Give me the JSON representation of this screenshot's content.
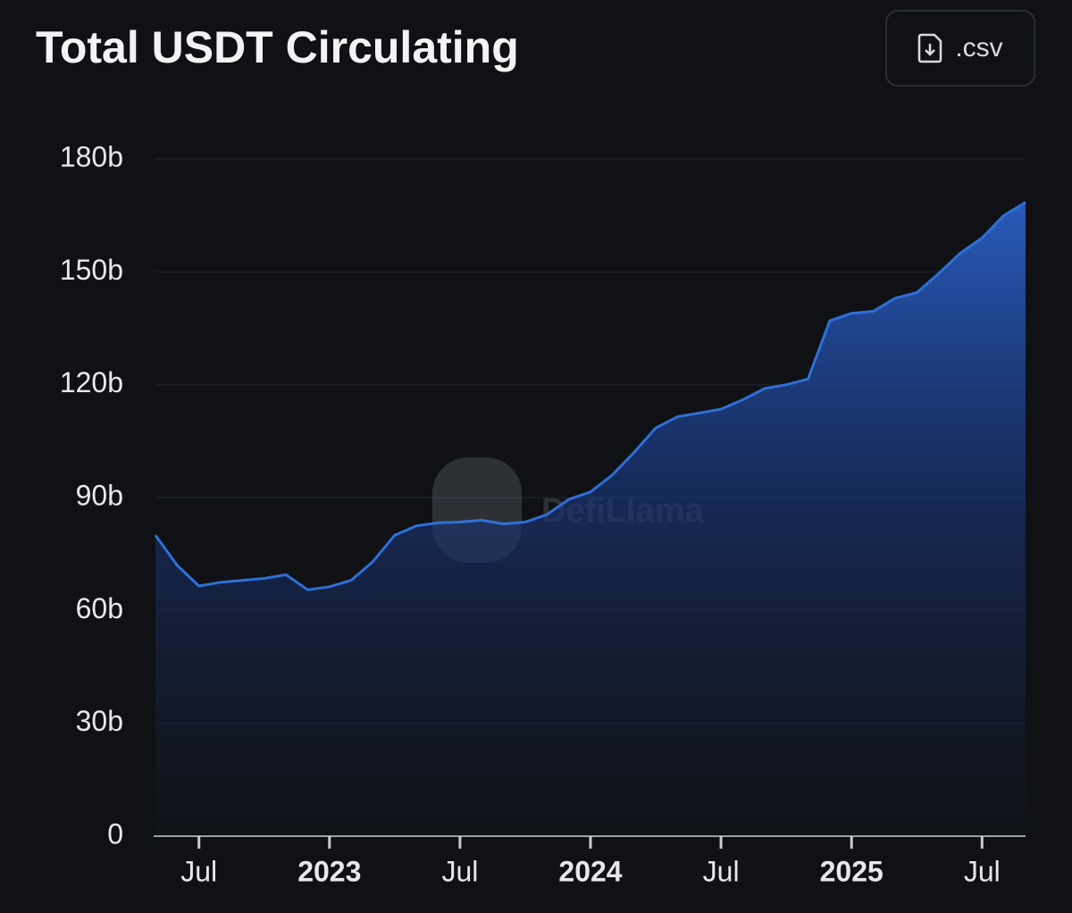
{
  "chart_data": {
    "type": "area",
    "title": "Total USDT Circulating",
    "button": ".csv",
    "watermark": "DefiLlama",
    "x": [
      "2022-05",
      "2022-06",
      "2022-07",
      "2022-08",
      "2022-09",
      "2022-10",
      "2022-11",
      "2022-12",
      "2023-01",
      "2023-02",
      "2023-03",
      "2023-04",
      "2023-05",
      "2023-06",
      "2023-07",
      "2023-08",
      "2023-09",
      "2023-10",
      "2023-11",
      "2023-12",
      "2024-01",
      "2024-02",
      "2024-03",
      "2024-04",
      "2024-05",
      "2024-06",
      "2024-07",
      "2024-08",
      "2024-09",
      "2024-10",
      "2024-11",
      "2024-12",
      "2025-01",
      "2025-02",
      "2025-03",
      "2025-04",
      "2025-05",
      "2025-06",
      "2025-07",
      "2025-08",
      "2025-09"
    ],
    "series": [
      {
        "name": "USDT",
        "color": "#2f6fd8",
        "values": [
          80,
          72,
          66.5,
          67.5,
          68,
          68.5,
          69.5,
          65.5,
          66.3,
          68,
          73,
          80,
          82.5,
          83.3,
          83.5,
          84,
          83,
          83.5,
          85.5,
          89.5,
          91.5,
          96,
          102,
          108.5,
          111.5,
          112.5,
          113.5,
          116,
          119,
          120,
          121.5,
          137,
          139,
          139.5,
          143,
          144.5,
          149.5,
          155,
          159,
          165,
          168.5
        ]
      }
    ],
    "xlim": [
      "2022-05",
      "2025-09"
    ],
    "xticks": [
      {
        "value": "2022-07",
        "label": "Jul"
      },
      {
        "value": "2023-01",
        "label": "2023"
      },
      {
        "value": "2023-07",
        "label": "Jul"
      },
      {
        "value": "2024-01",
        "label": "2024"
      },
      {
        "value": "2024-07",
        "label": "Jul"
      },
      {
        "value": "2025-01",
        "label": "2025"
      },
      {
        "value": "2025-07",
        "label": "Jul"
      }
    ],
    "ylim": [
      0,
      180
    ],
    "yticks": [
      0,
      {
        "value": 30,
        "label": "30b"
      },
      {
        "value": 60,
        "label": "60b"
      },
      {
        "value": 90,
        "label": "90b"
      },
      {
        "value": 120,
        "label": "120b"
      },
      {
        "value": 150,
        "label": "150b"
      },
      {
        "value": 180,
        "label": "180b"
      }
    ],
    "grid": true
  }
}
